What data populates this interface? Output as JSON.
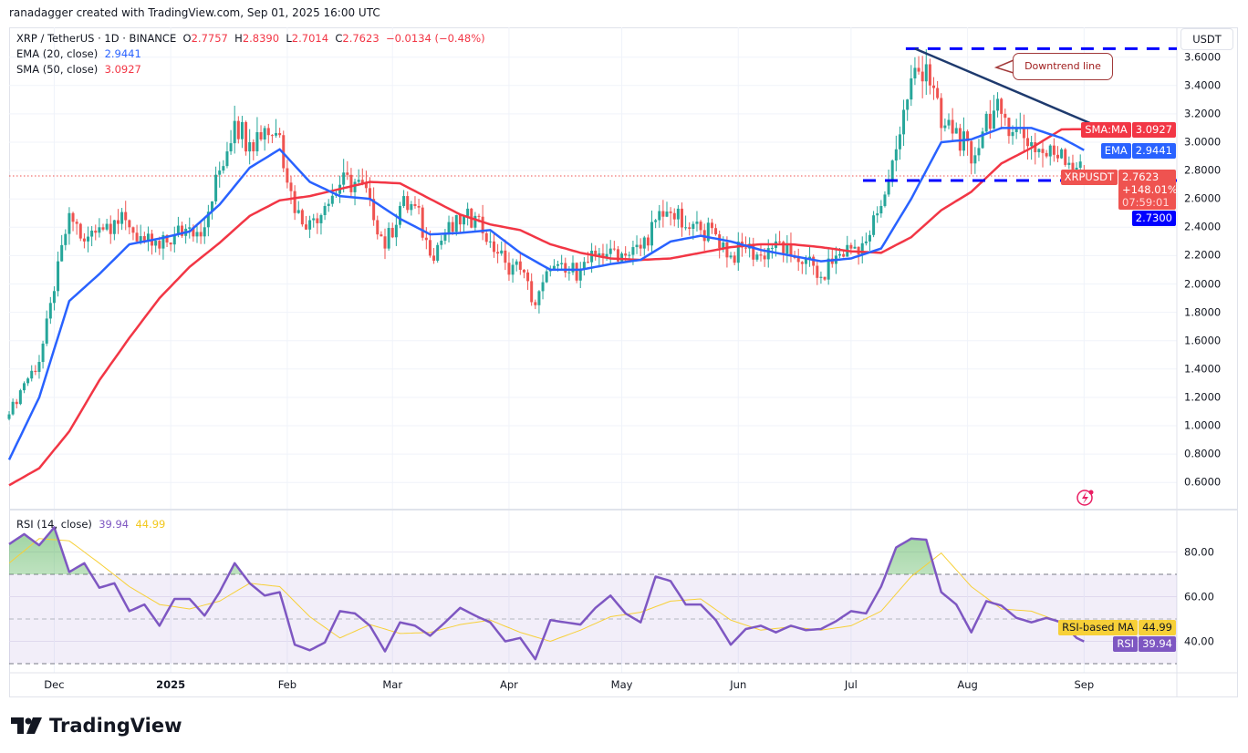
{
  "credit": "ranadagger created with TradingView.com, Sep 01, 2025 16:00 UTC",
  "legend": {
    "symbol": "XRP / TetherUS · 1D · BINANCE",
    "o_label": "O",
    "open": "2.7757",
    "h_label": "H",
    "high": "2.8390",
    "l_label": "L",
    "low": "2.7014",
    "c_label": "C",
    "close": "2.7623",
    "change": "−0.0134 (−0.48%)",
    "ema_label": "EMA (20, close)",
    "ema_value": "2.9441",
    "sma_label": "SMA (50, close)",
    "sma_value": "3.0927"
  },
  "rsi_legend": {
    "label": "RSI (14, close)",
    "rsi_value": "39.94",
    "ma_value": "44.99"
  },
  "currency_button": "USDT",
  "annotation": {
    "text": "Downtrend line",
    "resistance": 3.66,
    "support": 2.73,
    "trend_from": [
      "2025-07-18",
      3.66
    ],
    "trend_to": [
      "2025-09-03",
      3.13
    ]
  },
  "price_tags": {
    "sma_label": "SMA:MA",
    "sma_value": "3.0927",
    "ema_label": "EMA",
    "ema_value": "2.9441",
    "symbol_label": "XRPUSDT",
    "last_price": "2.7623",
    "change_pct": "+148.01%",
    "countdown": "07:59:01",
    "support_value": "2.7300"
  },
  "rsi_tags": {
    "ma_label": "RSI-based MA",
    "ma_value": "44.99",
    "rsi_label": "RSI",
    "rsi_value": "39.94"
  },
  "colors": {
    "up": "#26a69a",
    "down": "#ef5350",
    "ema": "#2962ff",
    "sma": "#f23645",
    "rsi": "#7e57c2",
    "rsi_ma": "#f7d038",
    "drawing": "#0000ff",
    "trendline": "#1e3a6e"
  },
  "price_axis": {
    "ticks": [
      "3.6000",
      "3.4000",
      "3.2000",
      "3.0000",
      "2.8000",
      "2.6000",
      "2.4000",
      "2.2000",
      "2.0000",
      "1.8000",
      "1.6000",
      "1.4000",
      "1.2000",
      "1.0000",
      "0.8000",
      "0.6000"
    ],
    "range": [
      0.55,
      3.8
    ]
  },
  "rsi_axis": {
    "ticks": [
      "80.00",
      "60.00",
      "40.00"
    ],
    "bands": [
      70,
      50,
      30
    ]
  },
  "time_axis": [
    {
      "label": "Dec",
      "date": "2024-12-01"
    },
    {
      "label": "2025",
      "date": "2025-01-01",
      "bold": true
    },
    {
      "label": "Feb",
      "date": "2025-02-01"
    },
    {
      "label": "Mar",
      "date": "2025-03-01"
    },
    {
      "label": "Apr",
      "date": "2025-04-01"
    },
    {
      "label": "May",
      "date": "2025-05-01"
    },
    {
      "label": "Jun",
      "date": "2025-06-01"
    },
    {
      "label": "Jul",
      "date": "2025-07-01"
    },
    {
      "label": "Aug",
      "date": "2025-08-01"
    },
    {
      "label": "Sep",
      "date": "2025-09-01"
    }
  ],
  "brand": "TradingView",
  "chart_data": {
    "type": "candlestick",
    "start_date": "2024-11-19",
    "last_date": "2025-09-01",
    "close_interval_days": 4,
    "closes": [
      1.08,
      1.3,
      1.45,
      1.95,
      2.5,
      2.3,
      2.4,
      2.45,
      2.4,
      2.3,
      2.25,
      2.35,
      2.4,
      2.4,
      2.8,
      3.15,
      3.0,
      3.1,
      3.05,
      2.5,
      2.45,
      2.55,
      2.7,
      2.72,
      2.6,
      2.25,
      2.55,
      2.55,
      2.2,
      2.35,
      2.42,
      2.48,
      2.3,
      2.15,
      2.1,
      1.85,
      2.1,
      2.08,
      2.1,
      2.2,
      2.25,
      2.2,
      2.25,
      2.45,
      2.5,
      2.4,
      2.38,
      2.35,
      2.2,
      2.25,
      2.2,
      2.3,
      2.2,
      2.18,
      2.05,
      2.2,
      2.25,
      2.3,
      2.55,
      2.95,
      3.45,
      3.55,
      3.1,
      3.1,
      2.85,
      3.2,
      3.2,
      3.1,
      3.0,
      2.9,
      2.95,
      2.82,
      2.7623
    ],
    "ma_interval_days": 8,
    "ema20": [
      0.76,
      1.2,
      1.88,
      2.07,
      2.28,
      2.32,
      2.37,
      2.56,
      2.82,
      2.95,
      2.72,
      2.62,
      2.6,
      2.46,
      2.35,
      2.36,
      2.38,
      2.22,
      2.1,
      2.1,
      2.14,
      2.17,
      2.3,
      2.34,
      2.3,
      2.24,
      2.2,
      2.16,
      2.18,
      2.25,
      2.6,
      3.0,
      3.02,
      3.1,
      3.1,
      3.03,
      2.9441
    ],
    "sma50": [
      0.58,
      0.7,
      0.96,
      1.32,
      1.62,
      1.9,
      2.12,
      2.29,
      2.48,
      2.59,
      2.62,
      2.67,
      2.72,
      2.71,
      2.6,
      2.49,
      2.42,
      2.38,
      2.28,
      2.22,
      2.18,
      2.17,
      2.18,
      2.22,
      2.26,
      2.28,
      2.28,
      2.26,
      2.23,
      2.22,
      2.33,
      2.52,
      2.65,
      2.85,
      2.96,
      3.09,
      3.0927
    ],
    "rsi14": [
      83.5,
      88,
      83,
      91,
      71,
      75,
      64,
      66,
      53.5,
      56.5,
      47,
      59,
      59,
      51.5,
      62,
      75,
      66,
      60.5,
      62,
      38.5,
      36,
      39.5,
      53.5,
      52.5,
      47,
      35.5,
      48.5,
      47,
      42.5,
      48.5,
      55,
      51.5,
      48.5,
      40,
      41.5,
      32,
      49.5,
      48.5,
      47.5,
      55,
      60.5,
      52.5,
      48.5,
      69,
      67,
      56.5,
      56.5,
      49.5,
      38.5,
      45.5,
      47,
      44,
      47,
      45,
      45.5,
      49,
      53.5,
      52.5,
      64.5,
      82,
      86,
      85.5,
      62,
      56.5,
      44,
      58,
      56,
      50.5,
      48.5,
      50.5,
      48.5,
      41.5,
      39.94
    ],
    "rsi_ma": [
      75,
      86,
      85,
      75,
      64.5,
      56.5,
      54.5,
      58,
      66,
      64.5,
      51,
      41.5,
      47.5,
      43.5,
      44,
      47.5,
      49.5,
      44,
      40,
      45,
      51,
      53,
      58,
      59,
      49.5,
      45,
      46.5,
      45,
      47,
      53.5,
      69,
      79.5,
      64.5,
      54.5,
      53.5,
      48.5,
      44.99
    ]
  }
}
